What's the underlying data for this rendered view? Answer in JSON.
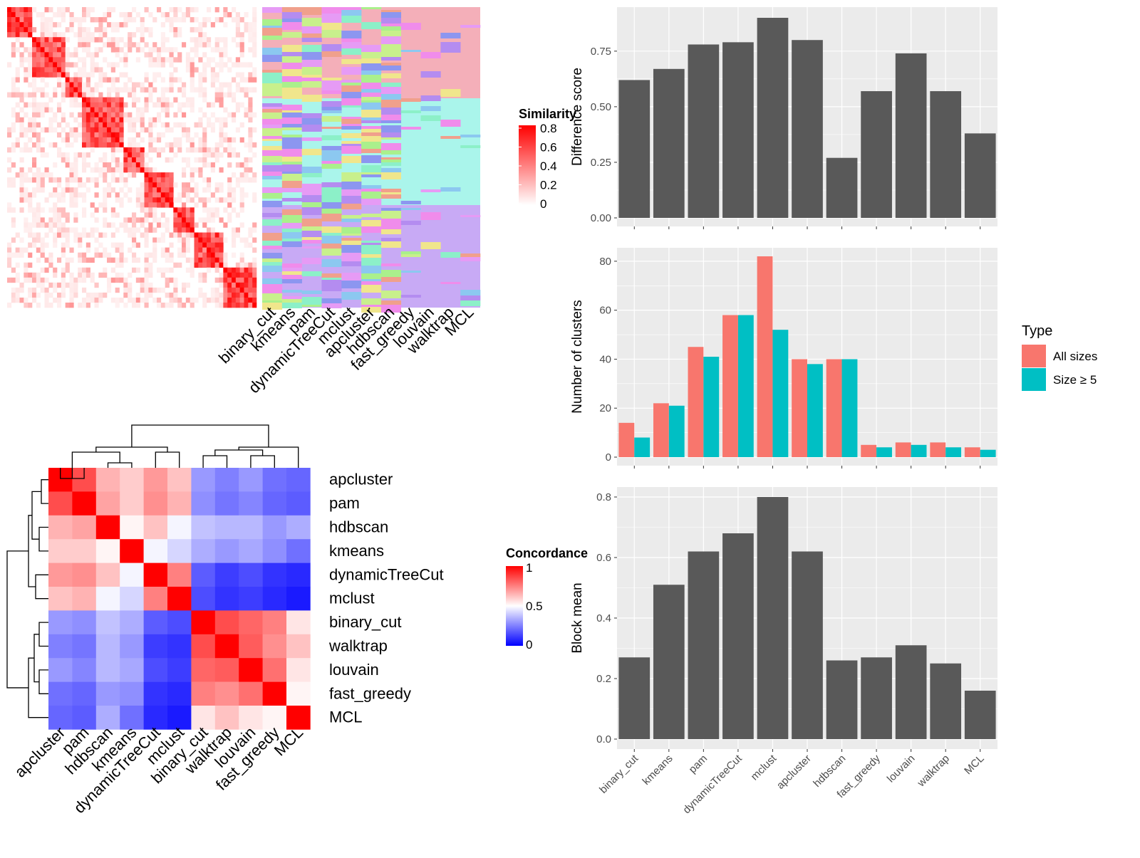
{
  "chart_data": [
    {
      "type": "heatmap",
      "id": "similarity_matrix",
      "legend_title": "Similarity",
      "legend_ticks": [
        0,
        0.2,
        0.4,
        0.6,
        0.8
      ],
      "note": "Cell-level values not legible; rendered as block-diagonal similarity structure."
    },
    {
      "type": "heatmap",
      "id": "cluster_assignments",
      "columns": [
        "binary_cut",
        "kmeans",
        "pam",
        "dynamicTreeCut",
        "mclust",
        "apcluster",
        "hdbscan",
        "fast_greedy",
        "louvain",
        "walktrap",
        "MCL"
      ]
    },
    {
      "type": "heatmap",
      "id": "concordance",
      "legend_title": "Concordance",
      "legend_ticks": [
        0,
        0.5,
        1
      ],
      "rows": [
        "apcluster",
        "pam",
        "hdbscan",
        "kmeans",
        "dynamicTreeCut",
        "mclust",
        "binary_cut",
        "walktrap",
        "louvain",
        "fast_greedy",
        "MCL"
      ],
      "cols": [
        "apcluster",
        "pam",
        "hdbscan",
        "kmeans",
        "dynamicTreeCut",
        "mclust",
        "binary_cut",
        "walktrap",
        "louvain",
        "fast_greedy",
        "MCL"
      ],
      "values": [
        [
          1.0,
          0.85,
          0.65,
          0.6,
          0.7,
          0.62,
          0.3,
          0.25,
          0.3,
          0.22,
          0.2
        ],
        [
          0.85,
          1.0,
          0.68,
          0.6,
          0.72,
          0.65,
          0.28,
          0.23,
          0.26,
          0.2,
          0.18
        ],
        [
          0.65,
          0.68,
          1.0,
          0.52,
          0.62,
          0.48,
          0.38,
          0.36,
          0.36,
          0.3,
          0.34
        ],
        [
          0.6,
          0.6,
          0.52,
          1.0,
          0.48,
          0.42,
          0.34,
          0.3,
          0.33,
          0.28,
          0.22
        ],
        [
          0.7,
          0.72,
          0.62,
          0.48,
          1.0,
          0.75,
          0.18,
          0.12,
          0.15,
          0.1,
          0.08
        ],
        [
          0.62,
          0.65,
          0.48,
          0.42,
          0.75,
          1.0,
          0.15,
          0.1,
          0.12,
          0.08,
          0.05
        ],
        [
          0.3,
          0.28,
          0.38,
          0.34,
          0.18,
          0.15,
          1.0,
          0.85,
          0.8,
          0.75,
          0.55
        ],
        [
          0.25,
          0.23,
          0.36,
          0.3,
          0.12,
          0.1,
          0.85,
          1.0,
          0.82,
          0.72,
          0.62
        ],
        [
          0.3,
          0.26,
          0.36,
          0.33,
          0.15,
          0.12,
          0.8,
          0.82,
          1.0,
          0.78,
          0.55
        ],
        [
          0.22,
          0.2,
          0.3,
          0.28,
          0.1,
          0.08,
          0.75,
          0.72,
          0.78,
          1.0,
          0.52
        ],
        [
          0.2,
          0.18,
          0.34,
          0.22,
          0.08,
          0.05,
          0.55,
          0.62,
          0.55,
          0.52,
          1.0
        ]
      ]
    },
    {
      "type": "bar",
      "id": "difference_score",
      "categories": [
        "binary_cut",
        "kmeans",
        "pam",
        "dynamicTreeCut",
        "mclust",
        "apcluster",
        "hdbscan",
        "fast_greedy",
        "louvain",
        "walktrap",
        "MCL"
      ],
      "values": [
        0.62,
        0.67,
        0.78,
        0.79,
        0.9,
        0.8,
        0.27,
        0.57,
        0.74,
        0.57,
        0.38
      ],
      "ylabel": "Difference score",
      "ylim": [
        0,
        0.9
      ],
      "yticks": [
        0.0,
        0.25,
        0.5,
        0.75
      ],
      "ytick_labels": [
        "0.00",
        "0.25",
        "0.50",
        "0.75"
      ],
      "color": "#595959"
    },
    {
      "type": "bar",
      "id": "number_of_clusters",
      "categories": [
        "binary_cut",
        "kmeans",
        "pam",
        "dynamicTreeCut",
        "mclust",
        "apcluster",
        "hdbscan",
        "fast_greedy",
        "louvain",
        "walktrap",
        "MCL"
      ],
      "series": [
        {
          "name": "All sizes",
          "values": [
            14,
            22,
            45,
            58,
            82,
            40,
            40,
            5,
            6,
            6,
            4
          ],
          "color": "#F8766D"
        },
        {
          "name": "Size ≥ 5",
          "values": [
            8,
            21,
            41,
            58,
            52,
            38,
            40,
            4,
            5,
            4,
            3
          ],
          "color": "#00BFC4"
        }
      ],
      "ylabel": "Number of clusters",
      "ylim": [
        0,
        82
      ],
      "yticks": [
        0,
        20,
        40,
        60,
        80
      ],
      "legend_title": "Type",
      "legend_position": "right"
    },
    {
      "type": "bar",
      "id": "block_mean",
      "categories": [
        "binary_cut",
        "kmeans",
        "pam",
        "dynamicTreeCut",
        "mclust",
        "apcluster",
        "hdbscan",
        "fast_greedy",
        "louvain",
        "walktrap",
        "MCL"
      ],
      "values": [
        0.27,
        0.51,
        0.62,
        0.68,
        0.8,
        0.62,
        0.26,
        0.27,
        0.31,
        0.25,
        0.16
      ],
      "ylabel": "Block mean",
      "ylim": [
        0,
        0.8
      ],
      "yticks": [
        0.0,
        0.2,
        0.4,
        0.6,
        0.8
      ],
      "ytick_labels": [
        "0.0",
        "0.2",
        "0.4",
        "0.6",
        "0.8"
      ],
      "color": "#595959"
    }
  ],
  "colors": {
    "panel_bg": "#EBEBEB",
    "grid": "#FFFFFF",
    "bar": "#595959",
    "heat_high": "#FF0000",
    "heat_low": "#0000FF",
    "heat_mid": "#FFFFFF",
    "group1": "#F4AFB9",
    "group2": "#AAF5EB",
    "group3": "#C8AAF5"
  }
}
